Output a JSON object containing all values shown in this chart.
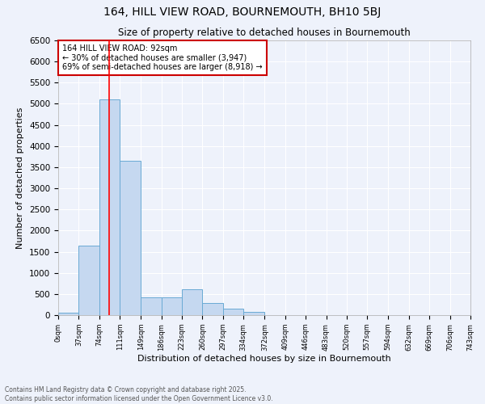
{
  "title1": "164, HILL VIEW ROAD, BOURNEMOUTH, BH10 5BJ",
  "title2": "Size of property relative to detached houses in Bournemouth",
  "xlabel": "Distribution of detached houses by size in Bournemouth",
  "ylabel": "Number of detached properties",
  "annotation_title": "164 HILL VIEW ROAD: 92sqm",
  "annotation_line1": "← 30% of detached houses are smaller (3,947)",
  "annotation_line2": "69% of semi-detached houses are larger (8,918) →",
  "footer1": "Contains HM Land Registry data © Crown copyright and database right 2025.",
  "footer2": "Contains public sector information licensed under the Open Government Licence v3.0.",
  "bar_edges": [
    0,
    37,
    74,
    111,
    149,
    186,
    223,
    260,
    297,
    334,
    372,
    409,
    446,
    483,
    520,
    557,
    594,
    632,
    669,
    706,
    743
  ],
  "bar_heights": [
    50,
    1650,
    5100,
    3650,
    420,
    420,
    620,
    280,
    150,
    80,
    0,
    0,
    0,
    0,
    0,
    0,
    0,
    0,
    0,
    0
  ],
  "tick_labels": [
    "0sqm",
    "37sqm",
    "74sqm",
    "111sqm",
    "149sqm",
    "186sqm",
    "223sqm",
    "260sqm",
    "297sqm",
    "334sqm",
    "372sqm",
    "409sqm",
    "446sqm",
    "483sqm",
    "520sqm",
    "557sqm",
    "594sqm",
    "632sqm",
    "669sqm",
    "706sqm",
    "743sqm"
  ],
  "bar_color": "#c5d8f0",
  "bar_edge_color": "#6aaad4",
  "red_line_x": 92,
  "ylim": [
    0,
    6500
  ],
  "yticks": [
    0,
    500,
    1000,
    1500,
    2000,
    2500,
    3000,
    3500,
    4000,
    4500,
    5000,
    5500,
    6000,
    6500
  ],
  "background_color": "#eef2fb",
  "grid_color": "#ffffff",
  "annotation_box_color": "#ffffff",
  "annotation_box_edge": "#cc0000"
}
